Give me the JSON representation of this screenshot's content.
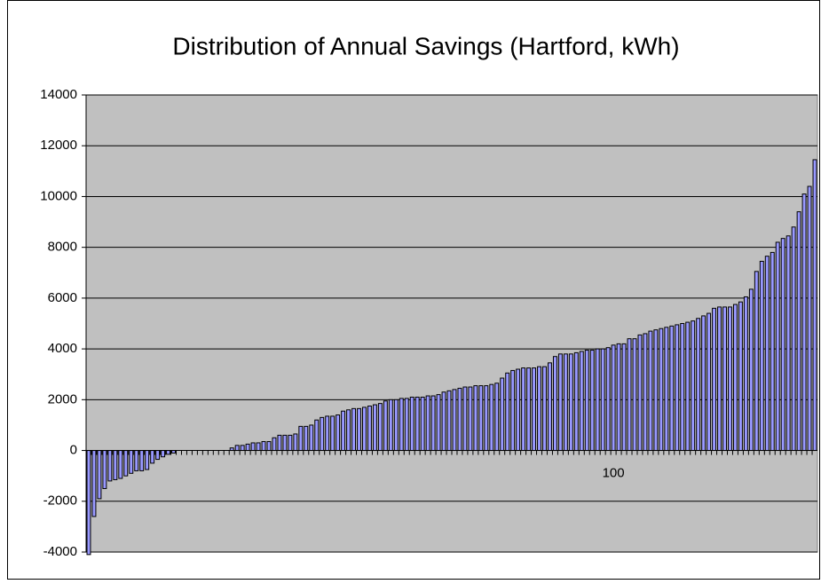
{
  "chart_data": {
    "type": "bar",
    "title": "Distribution of Annual Savings (Hartford, kWh)",
    "categories": [
      null,
      null,
      null,
      null,
      null,
      null,
      null,
      null,
      null,
      null,
      null,
      null,
      null,
      null,
      null,
      null,
      null,
      null,
      null,
      null,
      null,
      null,
      null,
      null,
      null,
      null,
      null,
      null,
      null,
      null,
      null,
      null,
      null,
      null,
      null,
      null,
      null,
      null,
      null,
      null,
      null,
      null,
      null,
      null,
      null,
      null,
      null,
      null,
      null,
      null,
      null,
      null,
      null,
      null,
      null,
      null,
      null,
      null,
      null,
      null,
      null,
      null,
      null,
      null,
      null,
      null,
      null,
      null,
      null,
      null,
      null,
      null,
      null,
      null,
      null,
      null,
      null,
      null,
      null,
      null,
      null,
      null,
      null,
      null,
      null,
      null,
      null,
      null,
      null,
      null,
      null,
      null,
      null,
      null,
      null,
      null,
      null,
      null,
      null,
      "100",
      null,
      null,
      null,
      null,
      null,
      null,
      null,
      null,
      null,
      null,
      null,
      null,
      null,
      null,
      null,
      null,
      null,
      null,
      null,
      null,
      null,
      null,
      null,
      null,
      null,
      null,
      null,
      null,
      null,
      null,
      null,
      null,
      null,
      null,
      null,
      null,
      null,
      null
    ],
    "values": [
      -4100,
      -2600,
      -1900,
      -1500,
      -1200,
      -1150,
      -1100,
      -1000,
      -900,
      -800,
      -800,
      -750,
      -500,
      -350,
      -250,
      -150,
      -100,
      0,
      0,
      0,
      0,
      0,
      0,
      0,
      0,
      0,
      0,
      100,
      200,
      200,
      250,
      300,
      300,
      350,
      350,
      500,
      600,
      600,
      600,
      650,
      950,
      950,
      1000,
      1200,
      1300,
      1350,
      1350,
      1400,
      1550,
      1600,
      1650,
      1650,
      1700,
      1750,
      1800,
      1850,
      1950,
      2000,
      2000,
      2050,
      2050,
      2100,
      2100,
      2100,
      2150,
      2150,
      2200,
      2300,
      2350,
      2400,
      2450,
      2500,
      2500,
      2550,
      2550,
      2550,
      2600,
      2650,
      2850,
      3050,
      3150,
      3200,
      3250,
      3250,
      3250,
      3300,
      3300,
      3450,
      3700,
      3800,
      3800,
      3800,
      3850,
      3900,
      3950,
      3950,
      4000,
      4000,
      4050,
      4150,
      4200,
      4200,
      4400,
      4400,
      4550,
      4600,
      4700,
      4750,
      4800,
      4850,
      4900,
      4950,
      5000,
      5050,
      5100,
      5200,
      5300,
      5400,
      5600,
      5650,
      5650,
      5650,
      5750,
      5850,
      6050,
      6350,
      7050,
      7450,
      7650,
      7800,
      8200,
      8350,
      8450,
      8800,
      9400,
      10100,
      10400,
      11450
    ],
    "color": "#9999ff",
    "ylim": [
      -4000,
      14000
    ],
    "yticks": [
      -4000,
      -2000,
      0,
      2000,
      4000,
      6000,
      8000,
      10000,
      12000,
      14000
    ],
    "grid": true
  }
}
